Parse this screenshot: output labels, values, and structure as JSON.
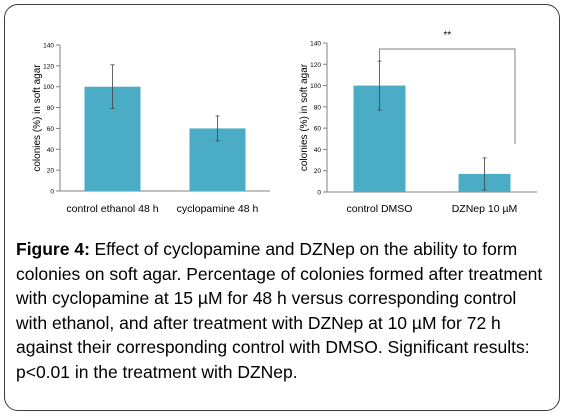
{
  "figure": {
    "label": "Figure 4:",
    "caption": "Effect of cyclopamine and DZNep on the ability to form colonies on soft agar. Percentage of colonies formed after treatment with cyclopamine at 15 µM for 48 h versus corresponding control with ethanol, and after treatment with DZNep at 10 µM for 72 h against their corresponding control with DMSO. Significant results: p<0.01 in the treatment with DZNep."
  },
  "colors": {
    "bar": "#4bacc6",
    "error_bar": "#404040",
    "axis": "#808080"
  },
  "chart_data": [
    {
      "type": "bar",
      "title": "",
      "xlabel": "",
      "ylabel": "colonies (%) in soft agar",
      "ylim": [
        0,
        140
      ],
      "yticks": [
        0,
        20,
        40,
        60,
        80,
        100,
        120,
        140
      ],
      "grid": false,
      "categories": [
        "control ethanol 48 h",
        "cyclopamine  48 h"
      ],
      "values": [
        100,
        60
      ],
      "error": [
        21,
        12
      ]
    },
    {
      "type": "bar",
      "title": "",
      "xlabel": "",
      "ylabel": "colonies (%) in soft agar",
      "ylim": [
        0,
        140
      ],
      "yticks": [
        0,
        20,
        40,
        60,
        80,
        100,
        120,
        140
      ],
      "grid": false,
      "categories": [
        "control DMSO",
        "DZNep 10  µM"
      ],
      "values": [
        100,
        17
      ],
      "error": [
        23,
        15
      ],
      "significance": {
        "label": "**",
        "between": [
          0,
          1
        ]
      }
    }
  ]
}
